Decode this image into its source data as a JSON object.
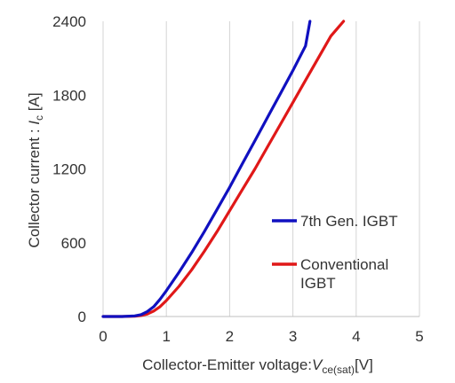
{
  "chart_data": {
    "type": "line",
    "title": "",
    "xlabel": {
      "prefix": "Collector-Emitter voltage:",
      "symbol": "V",
      "subscript": "ce(sat)",
      "unit": "[V]"
    },
    "ylabel": {
      "prefix": "Collector current : ",
      "symbol": "I",
      "subscript": "c",
      "unit": " [A]"
    },
    "xlim": [
      0,
      5
    ],
    "ylim": [
      0,
      2400
    ],
    "xticks": [
      "0",
      "1",
      "2",
      "3",
      "4",
      "5"
    ],
    "yticks": [
      "0",
      "600",
      "1200",
      "1800",
      "2400"
    ],
    "grid": "vertical",
    "legend_position": "right",
    "series": [
      {
        "name": "7th Gen. IGBT",
        "color": "#1010c0",
        "x": [
          0,
          0.3,
          0.5,
          0.6,
          0.7,
          0.8,
          0.9,
          1.0,
          1.2,
          1.4,
          1.6,
          1.8,
          2.0,
          2.2,
          2.4,
          2.6,
          2.8,
          3.0,
          3.2,
          3.27
        ],
        "y": [
          0,
          0,
          5,
          15,
          40,
          80,
          140,
          210,
          360,
          520,
          690,
          870,
          1050,
          1240,
          1430,
          1620,
          1810,
          2000,
          2200,
          2400
        ]
      },
      {
        "name": "Conventional IGBT",
        "name_lines": [
          "Conventional",
          "IGBT"
        ],
        "color": "#e01818",
        "x": [
          0,
          0.3,
          0.5,
          0.6,
          0.7,
          0.8,
          0.9,
          1.0,
          1.2,
          1.4,
          1.6,
          1.8,
          2.0,
          2.2,
          2.4,
          2.6,
          2.8,
          3.0,
          3.2,
          3.4,
          3.6,
          3.8
        ],
        "y": [
          0,
          0,
          2,
          8,
          20,
          45,
          80,
          130,
          245,
          380,
          530,
          690,
          860,
          1030,
          1200,
          1380,
          1560,
          1740,
          1920,
          2100,
          2280,
          2400
        ]
      }
    ]
  }
}
